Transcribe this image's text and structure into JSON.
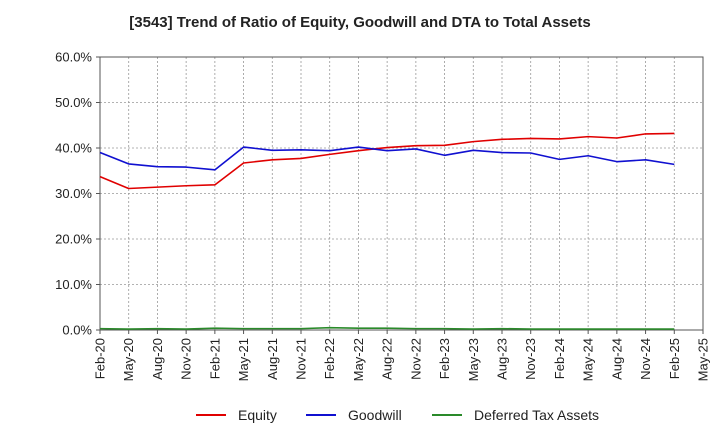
{
  "chart_data": {
    "type": "line",
    "title": "[3543]  Trend of Ratio of Equity, Goodwill and DTA to Total Assets",
    "xlabel": "",
    "ylabel": "",
    "ylim": [
      0,
      60
    ],
    "y_ticks": [
      "0.0%",
      "10.0%",
      "20.0%",
      "30.0%",
      "40.0%",
      "50.0%",
      "60.0%"
    ],
    "x_ticks": [
      "Feb-20",
      "May-20",
      "Aug-20",
      "Nov-20",
      "Feb-21",
      "May-21",
      "Aug-21",
      "Nov-21",
      "Feb-22",
      "May-22",
      "Aug-22",
      "Nov-22",
      "Feb-23",
      "May-23",
      "Aug-23",
      "Nov-23",
      "Feb-24",
      "May-24",
      "Aug-24",
      "Nov-24",
      "Feb-25",
      "May-25"
    ],
    "grid": true,
    "legend_position": "bottom",
    "series": [
      {
        "name": "Equity",
        "color": "#e00000",
        "values": [
          33.7,
          31.1,
          31.4,
          31.7,
          31.9,
          36.7,
          37.4,
          37.7,
          38.6,
          39.4,
          40.1,
          40.5,
          40.6,
          41.4,
          41.9,
          42.1,
          42.0,
          42.5,
          42.2,
          43.1,
          43.2
        ]
      },
      {
        "name": "Goodwill",
        "color": "#1010d0",
        "values": [
          39.0,
          36.5,
          35.9,
          35.8,
          35.2,
          40.2,
          39.5,
          39.6,
          39.4,
          40.2,
          39.4,
          39.8,
          38.4,
          39.5,
          39.0,
          38.9,
          37.5,
          38.3,
          37.0,
          37.4,
          36.4
        ]
      },
      {
        "name": "Deferred Tax Assets",
        "color": "#2a8a2a",
        "values": [
          0.3,
          0.2,
          0.3,
          0.2,
          0.4,
          0.3,
          0.3,
          0.3,
          0.5,
          0.4,
          0.4,
          0.3,
          0.3,
          0.2,
          0.3,
          0.2,
          0.2,
          0.2,
          0.2,
          0.2,
          0.2
        ]
      }
    ]
  }
}
